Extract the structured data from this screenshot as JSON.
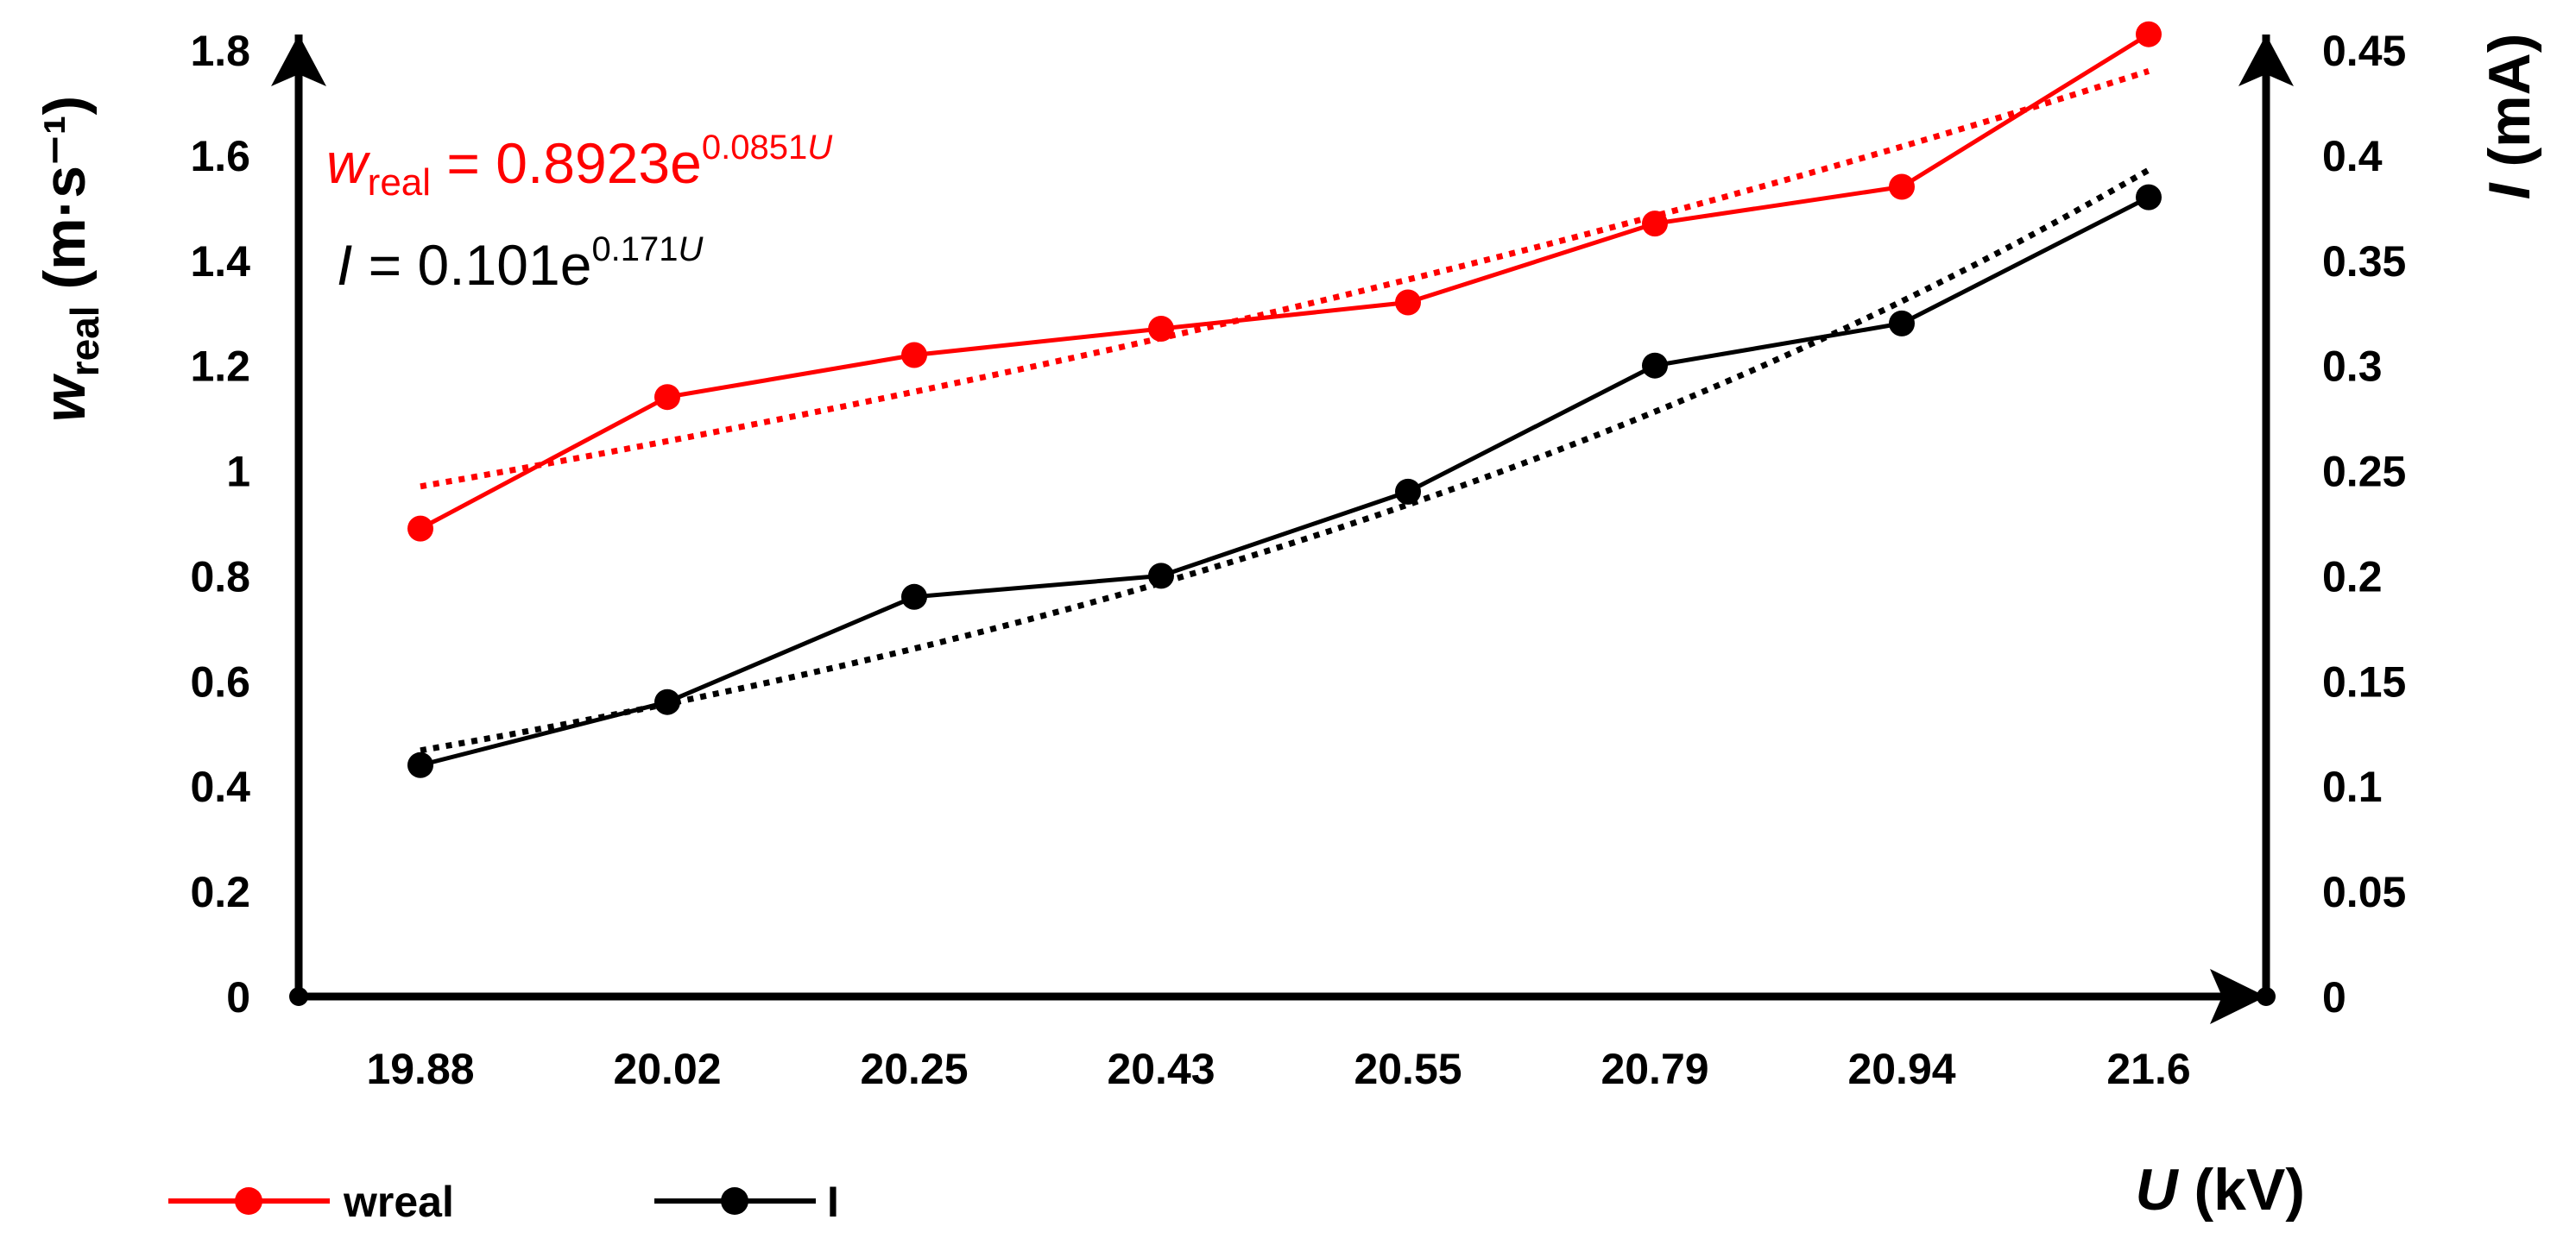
{
  "chart_data": {
    "type": "line",
    "categories": [
      "19.88",
      "20.02",
      "20.25",
      "20.43",
      "20.55",
      "20.79",
      "20.94",
      "21.6"
    ],
    "series": [
      {
        "name": "wreal",
        "axis": "left",
        "color": "#ff0000",
        "marker": "circle",
        "values": [
          0.89,
          1.14,
          1.22,
          1.27,
          1.32,
          1.47,
          1.54,
          1.83
        ],
        "trendline": {
          "type": "exponential",
          "style": "dotted",
          "start": 0.97,
          "end": 1.76
        }
      },
      {
        "name": "I",
        "axis": "right",
        "color": "#000000",
        "marker": "circle",
        "values": [
          0.11,
          0.14,
          0.19,
          0.2,
          0.24,
          0.3,
          0.32,
          0.38
        ],
        "trendline": {
          "type": "exponential",
          "style": "dotted",
          "start": 0.117,
          "end": 0.393
        }
      }
    ],
    "y_left": {
      "label_main": "w",
      "label_sub": "real",
      "label_unit": "(m·s⁻¹)",
      "ylim": [
        0,
        1.8
      ],
      "ticks": [
        "0",
        "0.2",
        "0.4",
        "0.6",
        "0.8",
        "1",
        "1.2",
        "1.4",
        "1.6",
        "1.8"
      ]
    },
    "y_right": {
      "label_main": "I",
      "label_unit": "(mA)",
      "ylim": [
        0,
        0.45
      ],
      "ticks": [
        "0",
        "0.05",
        "0.1",
        "0.15",
        "0.2",
        "0.25",
        "0.3",
        "0.35",
        "0.4",
        "0.45"
      ]
    },
    "x_axis": {
      "label_main": "U",
      "label_unit": "(kV)"
    },
    "annotations": {
      "eq_w": {
        "var": "w",
        "sub": "real",
        "rest": " = 0.8923e",
        "exp": "0.0851",
        "exp_var": "U",
        "color": "#ff0000"
      },
      "eq_i": {
        "var": "I",
        "rest": " = 0.101e",
        "exp": "0.171",
        "exp_var": "U",
        "color": "#000000"
      }
    },
    "legend": {
      "position": "bottom-left",
      "entries": [
        "wreal",
        "I"
      ]
    },
    "grid": false
  }
}
